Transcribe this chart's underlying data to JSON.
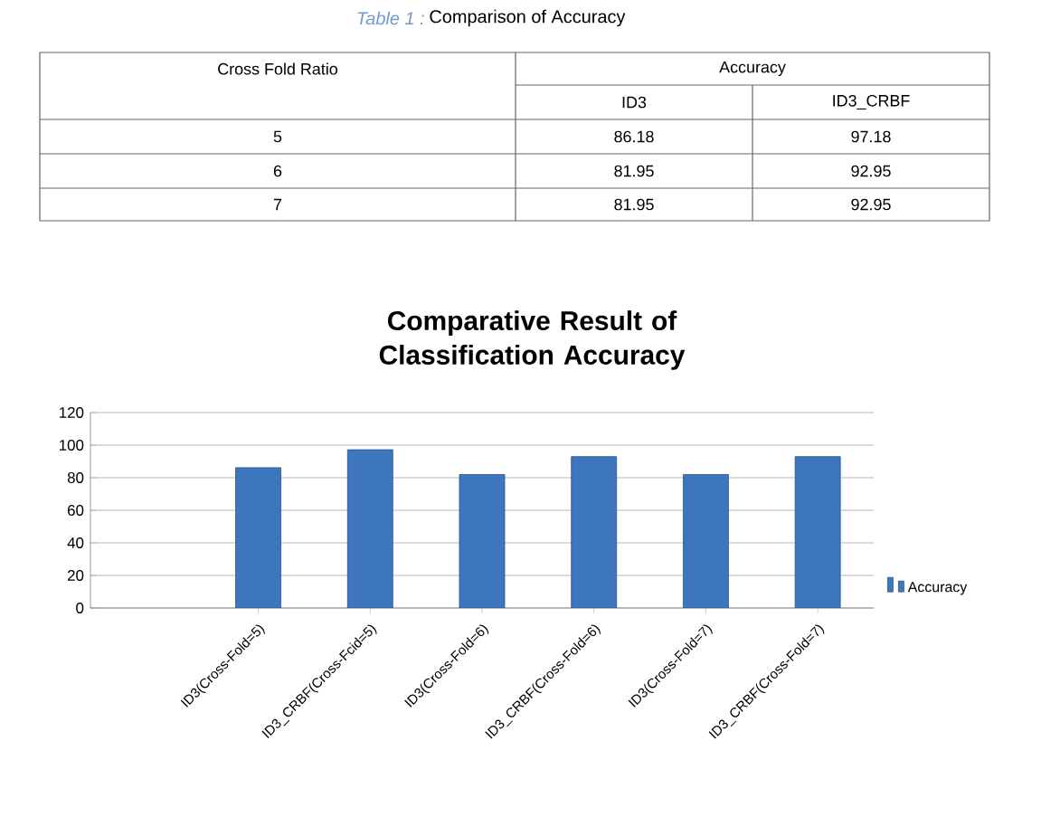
{
  "chart_data": {
    "type": "bar",
    "title": "Comparative  Result of Classification Accuracy",
    "categories": [
      null,
      "ID3(Cross-Fold=5)",
      "ID3_CRBF(Cross-Fcid=5)",
      "ID3(Cross-Fold=6)",
      "ID3_CRBF(Cross-Fold=6)",
      "ID3(Cross-Fold=7)",
      "ID3_CRBF(Cross-Fold=7)"
    ],
    "series": [
      {
        "name": "Accuracy",
        "color": "#3d76bd",
        "values": [
          null,
          86.18,
          97.18,
          81.95,
          92.95,
          81.95,
          92.95
        ]
      }
    ],
    "ylim": [
      0,
      120
    ],
    "yticks": [
      0,
      20,
      40,
      60,
      80,
      100,
      120
    ],
    "grid": "y",
    "legend": "right",
    "annotations": [
      "Table 1 :",
      "Comparison of Accuracy",
      "Cross Fold Ratio",
      "Accuracy",
      "ID3",
      "ID3_CRBF",
      "5",
      "86.18",
      "97.18",
      "6",
      "81.95",
      "92.95",
      "7",
      "81.95",
      "92.95"
    ]
  }
}
